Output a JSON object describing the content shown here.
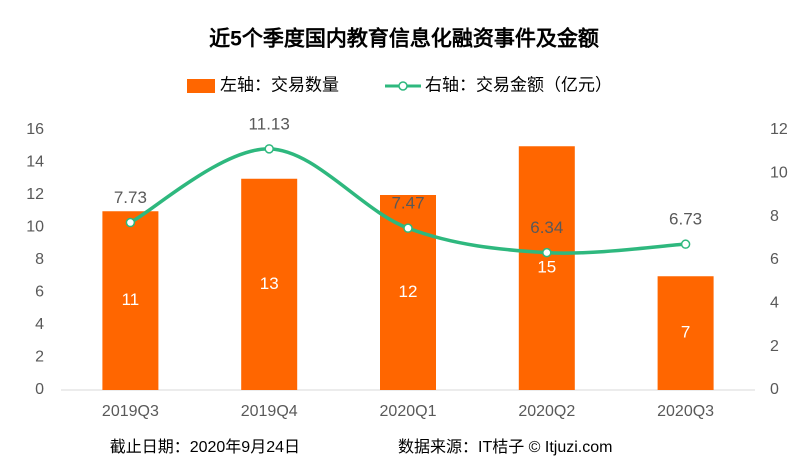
{
  "chart_data": {
    "type": "bar",
    "title": "近5个季度国内教育信息化融资事件及金额",
    "categories": [
      "2019Q3",
      "2019Q4",
      "2020Q1",
      "2020Q2",
      "2020Q3"
    ],
    "series": [
      {
        "name": "左轴：交易数量",
        "color": "#ff6600",
        "values": [
          11,
          13,
          12,
          15,
          7
        ]
      },
      {
        "name": "右轴：交易金额（亿元）",
        "color": "#2eb87e",
        "type": "line",
        "axis": "y2",
        "values": [
          7.73,
          11.13,
          7.47,
          6.34,
          6.73
        ]
      }
    ],
    "ylim": [
      0,
      16
    ],
    "yticks": [
      0,
      2,
      4,
      6,
      8,
      10,
      12,
      14,
      16
    ],
    "y2lim": [
      0,
      12
    ],
    "y2ticks": [
      0,
      2,
      4,
      6,
      8,
      10,
      12
    ],
    "legend": "top",
    "footer": [
      "截止日期：2020年9月24日",
      "数据来源：IT桔子 © Itjuzi.com"
    ]
  }
}
